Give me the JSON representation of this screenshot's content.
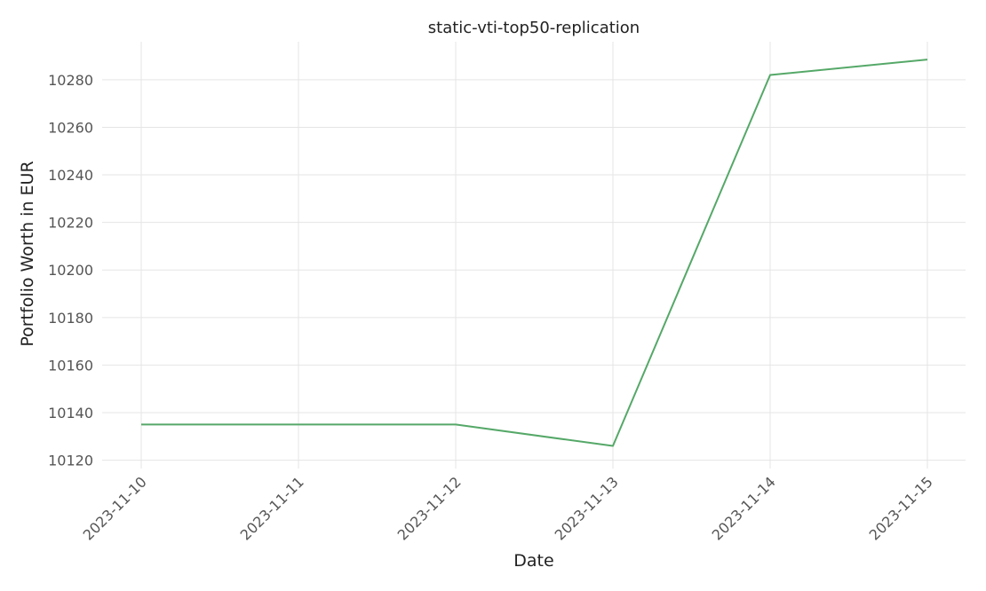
{
  "chart_data": {
    "type": "line",
    "title": "static-vti-top50-replication",
    "xlabel": "Date",
    "ylabel": "Portfolio Worth in EUR",
    "categories": [
      "2023-11-10",
      "2023-11-11",
      "2023-11-12",
      "2023-11-13",
      "2023-11-14",
      "2023-11-15"
    ],
    "series": [
      {
        "values": [
          10135,
          10135,
          10135,
          10126,
          10282,
          10288.5
        ],
        "color": "#55a868"
      }
    ],
    "yticks": [
      10120,
      10140,
      10160,
      10180,
      10200,
      10220,
      10240,
      10260,
      10280
    ],
    "ylim": [
      10116.5,
      10296
    ],
    "grid": true,
    "legend": "none"
  }
}
